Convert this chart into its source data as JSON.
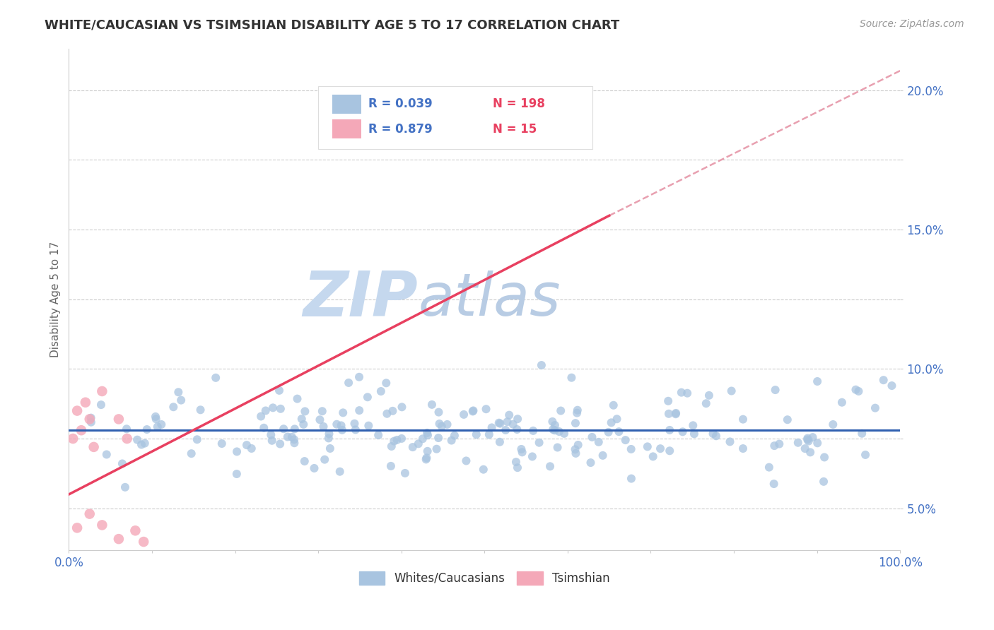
{
  "title": "WHITE/CAUCASIAN VS TSIMSHIAN DISABILITY AGE 5 TO 17 CORRELATION CHART",
  "source": "Source: ZipAtlas.com",
  "ylabel": "Disability Age 5 to 17",
  "xlim": [
    0.0,
    1.0
  ],
  "ylim": [
    0.035,
    0.215
  ],
  "yticks": [
    0.05,
    0.075,
    0.1,
    0.125,
    0.15,
    0.175,
    0.2
  ],
  "ytick_labels": [
    "5.0%",
    "",
    "10.0%",
    "",
    "15.0%",
    "",
    "20.0%"
  ],
  "xtick_positions": [
    0.0,
    0.1,
    0.2,
    0.3,
    0.4,
    0.5,
    0.6,
    0.7,
    0.8,
    0.9,
    1.0
  ],
  "xtick_labels": [
    "0.0%",
    "",
    "",
    "",
    "",
    "",
    "",
    "",
    "",
    "",
    "100.0%"
  ],
  "white_R": 0.039,
  "white_N": 198,
  "tsimshian_R": 0.879,
  "tsimshian_N": 15,
  "white_color": "#a8c4e0",
  "tsimshian_color": "#f4a8b8",
  "white_line_color": "#3060b0",
  "tsimshian_line_color": "#e84060",
  "dashed_line_color": "#e8a0b0",
  "watermark_zip_color": "#c8d8ec",
  "watermark_atlas_color": "#c8d8ec",
  "legend_text_color": "#4472c4",
  "legend_n_color": "#e84060",
  "title_color": "#333333",
  "tsimshian_line_x0": 0.0,
  "tsimshian_line_y0": 0.055,
  "tsimshian_line_x1": 0.65,
  "tsimshian_line_y1": 0.155,
  "white_line_y": 0.078,
  "dashed_line_x0": 0.65,
  "dashed_line_y0": 0.155,
  "dashed_line_x1": 1.0,
  "dashed_line_y1": 0.207
}
